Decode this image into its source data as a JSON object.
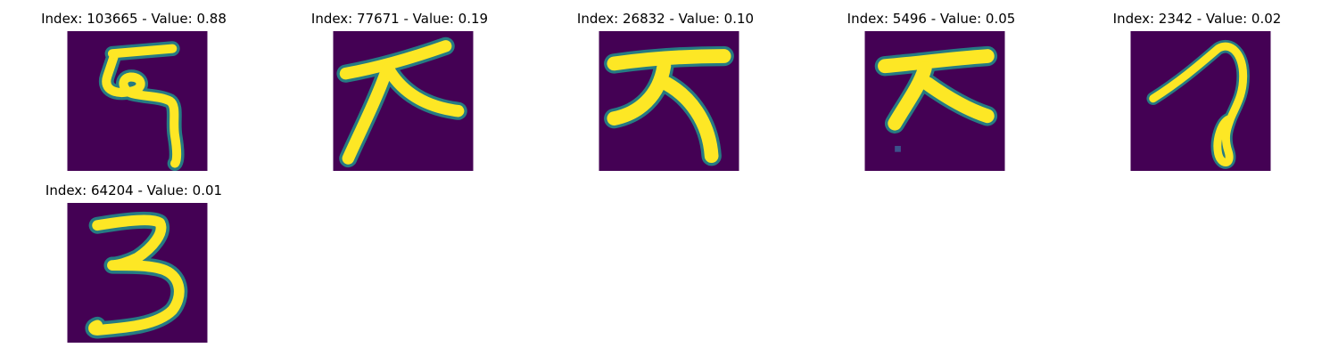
{
  "colors": {
    "background": "#440154",
    "stroke": "#fde725",
    "stroke_mid": "#21918c"
  },
  "panels": [
    {
      "title": "Index: 103665 - Value: 0.88",
      "index": 103665,
      "value": 0.88,
      "glyph": "character-9-like"
    },
    {
      "title": "Index: 77671 - Value: 0.19",
      "index": 77671,
      "value": 0.19,
      "glyph": "character-tian-like"
    },
    {
      "title": "Index: 26832 - Value: 0.10",
      "index": 26832,
      "value": 0.1,
      "glyph": "character-tian-like"
    },
    {
      "title": "Index: 5496 - Value: 0.05",
      "index": 5496,
      "value": 0.05,
      "glyph": "character-tian-like"
    },
    {
      "title": "Index: 2342 - Value: 0.02",
      "index": 2342,
      "value": 0.02,
      "glyph": "character-loop-like"
    },
    {
      "title": "Index: 64204 - Value: 0.01",
      "index": 64204,
      "value": 0.01,
      "glyph": "character-3-like"
    }
  ]
}
